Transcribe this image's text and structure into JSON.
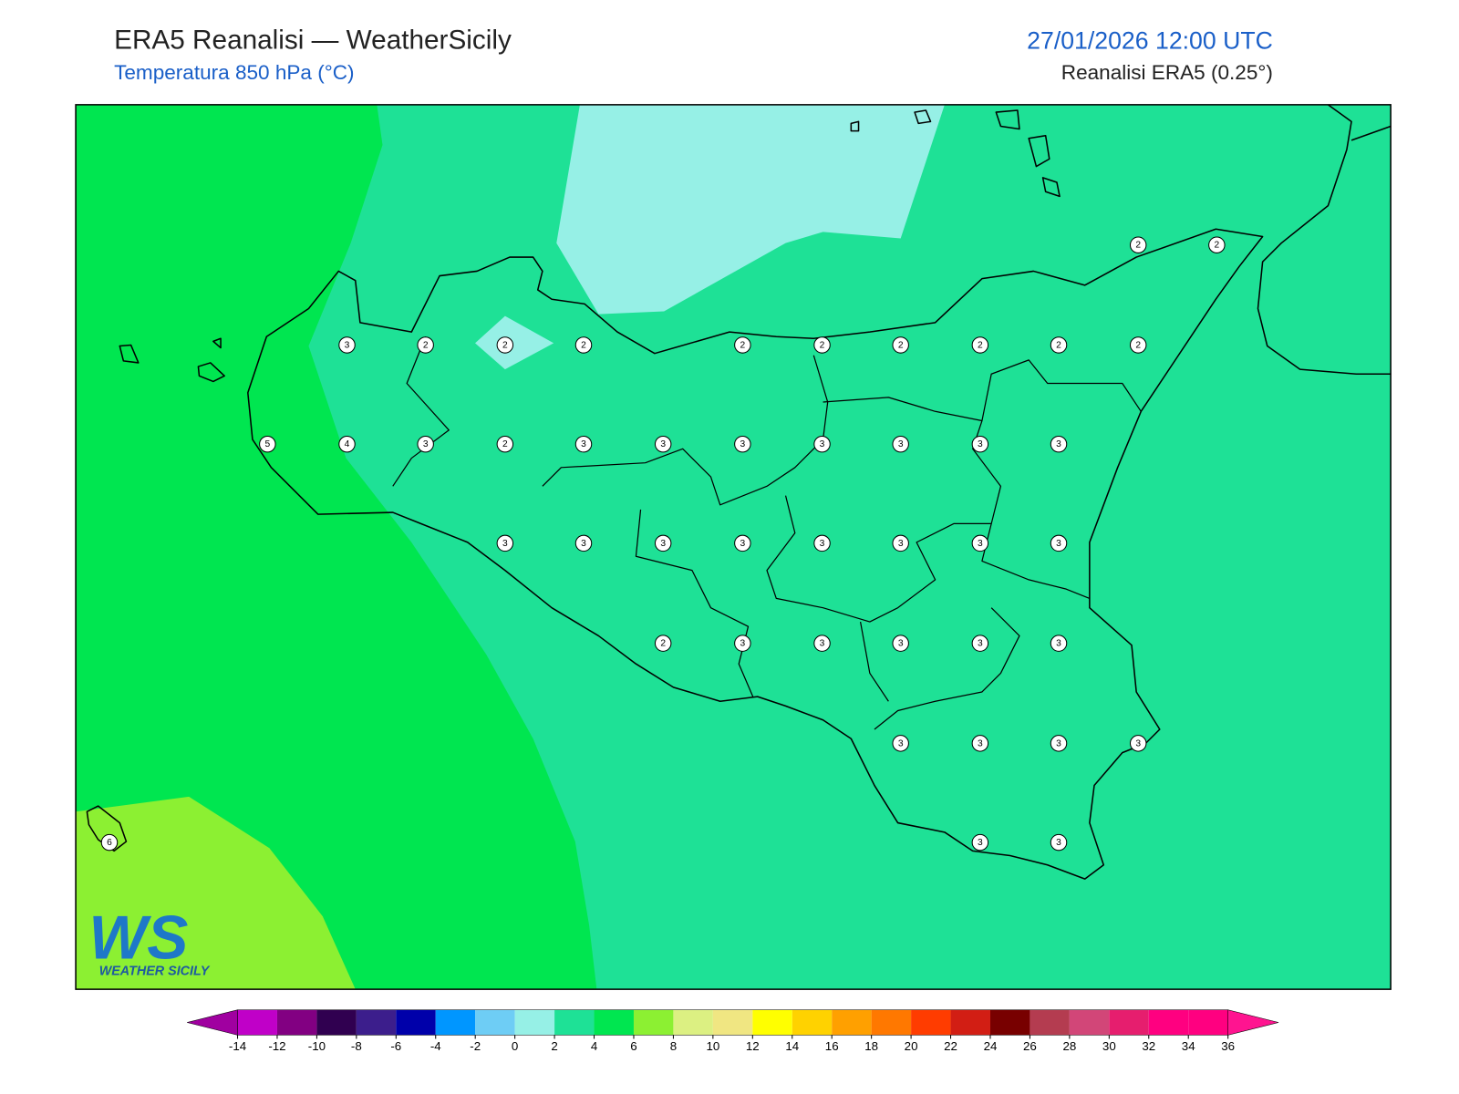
{
  "header": {
    "title": "ERA5 Reanalisi — WeatherSicily",
    "subtitle": "Temperatura 850 hPa (°C)",
    "datetime": "27/01/2026 12:00 UTC",
    "source": "Reanalisi ERA5 (0.25°)"
  },
  "stations": {
    "values": [
      2,
      2,
      3,
      2,
      2,
      2,
      2,
      2,
      2,
      2,
      2,
      2,
      5,
      4,
      3,
      2,
      3,
      3,
      3,
      3,
      3,
      3,
      3,
      3,
      3,
      3,
      3,
      3,
      3,
      3,
      3,
      2,
      3,
      3,
      3,
      3,
      3,
      3,
      3,
      3,
      3,
      6,
      3,
      3
    ]
  },
  "colorbar": {
    "ticks": [
      -14,
      -12,
      -10,
      -8,
      -6,
      -4,
      -2,
      0,
      2,
      4,
      6,
      8,
      10,
      12,
      14,
      16,
      18,
      20,
      22,
      24,
      26,
      28,
      30,
      32,
      34,
      36
    ],
    "colors": [
      "#c000c8",
      "#820082",
      "#300050",
      "#3c1e8c",
      "#0000aa",
      "#0096ff",
      "#6ecdf5",
      "#96f0e6",
      "#1ee196",
      "#00e650",
      "#8cf032",
      "#dcf082",
      "#f0e682",
      "#ffff00",
      "#ffd200",
      "#ffa000",
      "#ff7800",
      "#ff3c00",
      "#d21e14",
      "#780000",
      "#b43c50",
      "#d24678",
      "#e61e6e",
      "#ff0080",
      "#ff0080"
    ],
    "under": "#a000a0",
    "over": "#ff1490"
  },
  "logo": {
    "mark": "WS",
    "text": "WEATHER SICILY"
  }
}
